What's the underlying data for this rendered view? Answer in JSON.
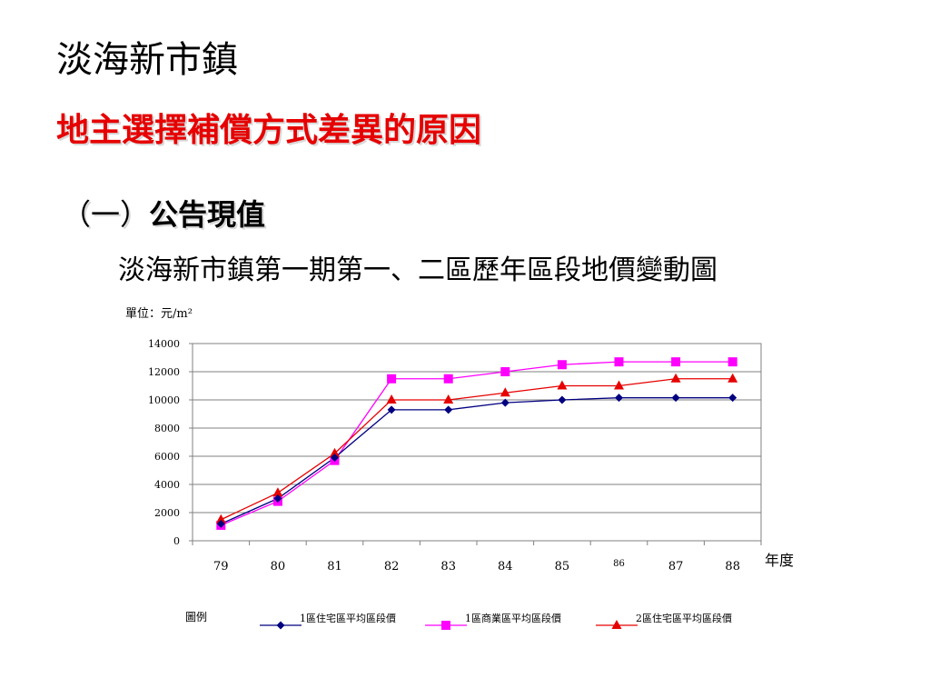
{
  "slide": {
    "title": "淡海新市鎮",
    "subtitle": "地主選擇補償方式差異的原因",
    "section_prefix": "（一）",
    "section_label": "公告現值"
  },
  "chart_data": {
    "type": "line",
    "title": "淡海新市鎮第一期第一、二區歷年區段地價變動圖",
    "unit_label": "單位：元/m²",
    "xlabel": "年度",
    "ylabel": "",
    "categories": [
      "79",
      "80",
      "81",
      "82",
      "83",
      "84",
      "85",
      "86",
      "87",
      "88"
    ],
    "ylim": [
      0,
      14000
    ],
    "yticks": [
      0,
      2000,
      4000,
      6000,
      8000,
      10000,
      12000,
      14000
    ],
    "grid": true,
    "legend_title": "圖例",
    "legend_position": "bottom",
    "series": [
      {
        "name": "1區住宅區平均區段價",
        "color": "#000080",
        "marker": "diamond",
        "values": [
          1200,
          3000,
          5900,
          9300,
          9300,
          9800,
          10000,
          10150,
          10150,
          10150
        ]
      },
      {
        "name": "1區商業區平均區段價",
        "color": "#ff00ff",
        "marker": "square",
        "values": [
          1100,
          2800,
          5700,
          11500,
          11500,
          12000,
          12500,
          12700,
          12700,
          12700
        ]
      },
      {
        "name": "2區住宅區平均區段價",
        "color": "#e60000",
        "marker": "triangle",
        "values": [
          1500,
          3400,
          6200,
          10000,
          10000,
          10500,
          11000,
          11000,
          11500,
          11500
        ]
      }
    ]
  }
}
